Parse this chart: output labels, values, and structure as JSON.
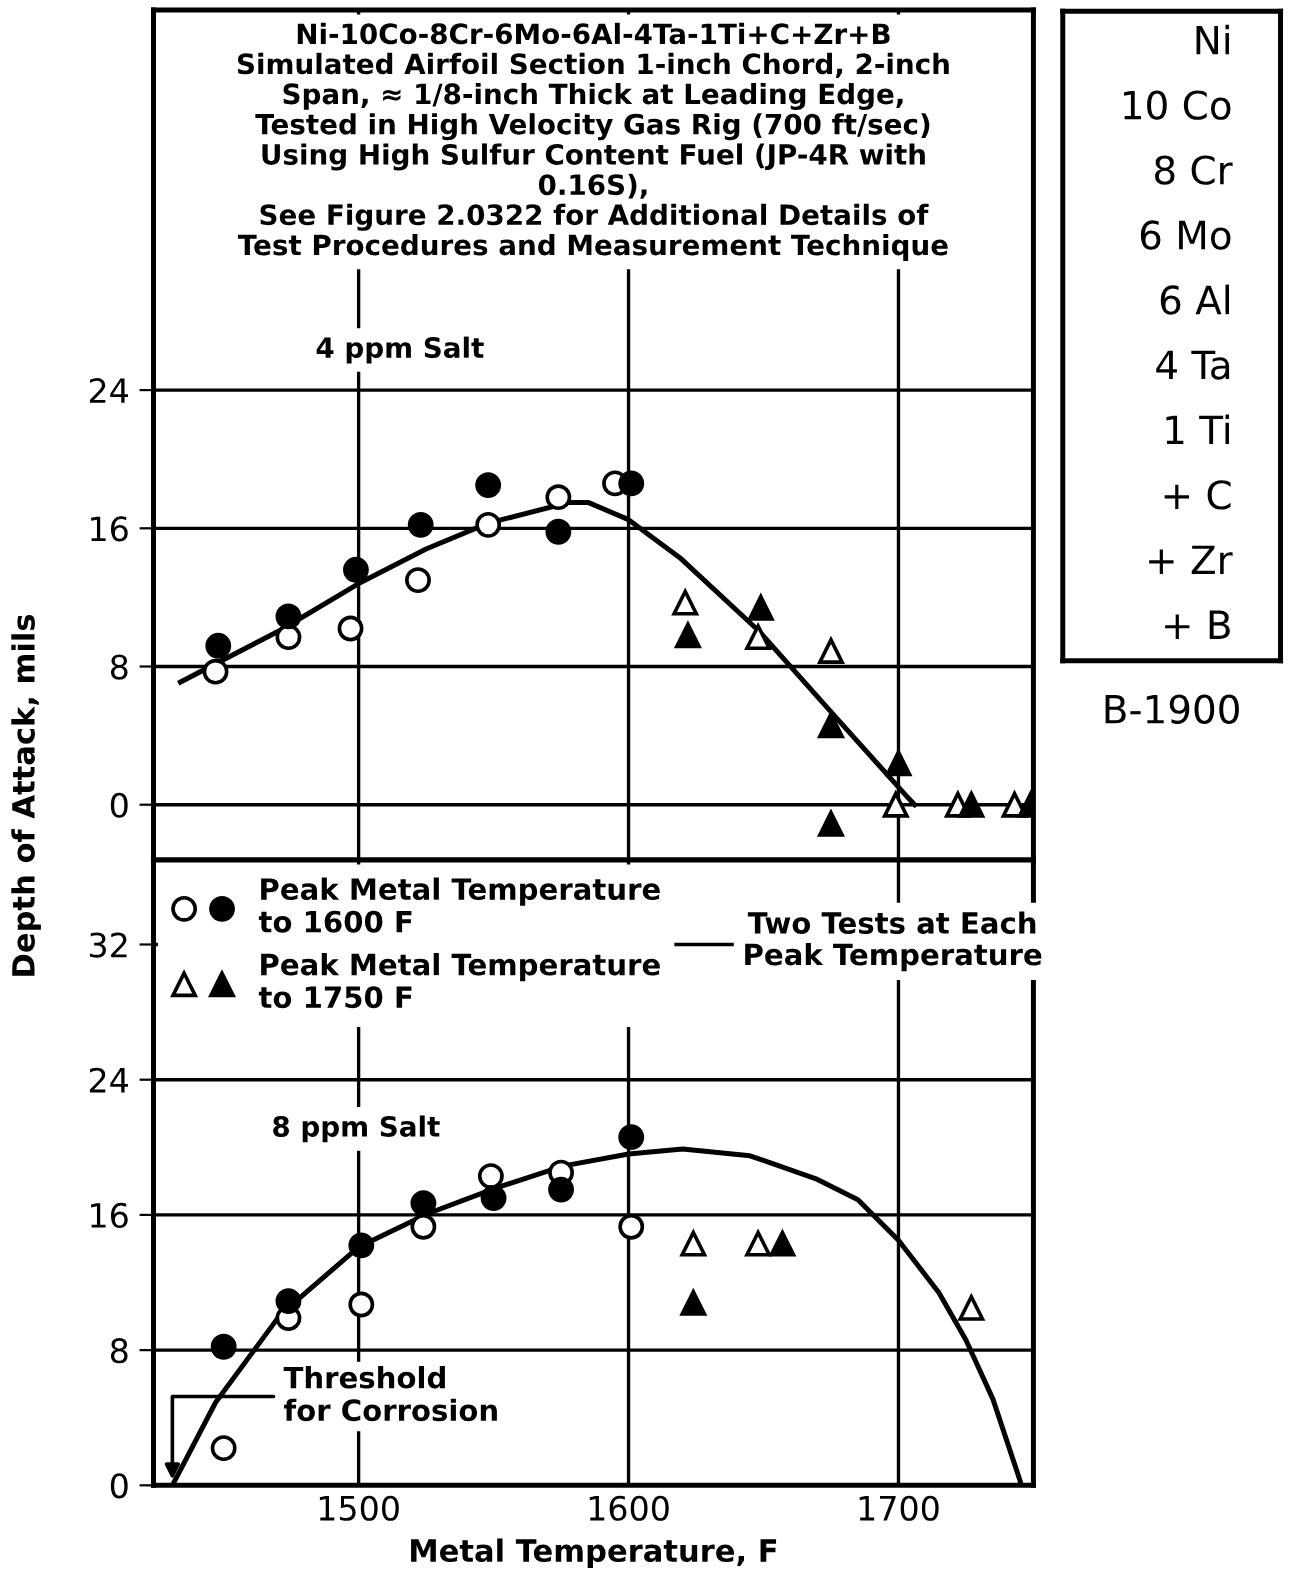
{
  "chart_data": [
    {
      "type": "scatter",
      "ylabel": "Depth of Attack, mils",
      "xlim": [
        1424,
        1750
      ],
      "ylim": [
        -3.2,
        46
      ],
      "xticks": [
        1500,
        1600,
        1700
      ],
      "yticks": [
        0,
        8,
        16,
        24
      ],
      "tick_labels": "y",
      "grid": true,
      "legend": false,
      "annotations": [
        "Ni-10Co-8Cr-6Mo-6Al-4Ta-1Ti+C+Zr+B\nSimulated Airfoil Section 1-inch Chord, 2-inch\nSpan, ≈ 1/8-inch Thick at Leading Edge,\nTested in High Velocity Gas Rig (700 ft/sec)\nUsing High Sulfur Content Fuel (JP-4R with\n0.16S),\nSee Figure 2.0322 for Additional Details of\nTest Procedures and Measurement Technique",
        "4 ppm Salt"
      ],
      "series": [
        {
          "color": "#ffffff",
          "marker": "circle",
          "x": [
            1447,
            1474,
            1497,
            1522,
            1548,
            1574,
            1595
          ],
          "values": [
            7.7,
            9.7,
            10.2,
            13.0,
            16.2,
            17.8,
            18.6
          ]
        },
        {
          "color": "#000000",
          "marker": "circle",
          "x": [
            1448,
            1474,
            1499,
            1523,
            1548,
            1574,
            1601
          ],
          "values": [
            9.2,
            10.9,
            13.6,
            16.2,
            18.5,
            15.8,
            18.6
          ]
        },
        {
          "color": "#ffffff",
          "marker": "triangle",
          "x": [
            1621,
            1648,
            1675,
            1699,
            1722,
            1743
          ],
          "values": [
            11.7,
            9.7,
            8.9,
            0,
            0,
            0
          ]
        },
        {
          "color": "#000000",
          "marker": "triangle",
          "x": [
            1622,
            1649,
            1675,
            1675,
            1700,
            1727,
            1749
          ],
          "values": [
            9.8,
            11.4,
            4.6,
            -1.1,
            2.4,
            0,
            0
          ]
        },
        {
          "type": "line",
          "color": "#000000",
          "marker": "none",
          "x": [
            1434,
            1471,
            1500,
            1525,
            1548,
            1578,
            1585,
            1600,
            1619,
            1648,
            1676,
            1703,
            1706
          ],
          "values": [
            7.1,
            10.1,
            12.8,
            14.8,
            16.3,
            17.5,
            17.5,
            16.5,
            14.3,
            10.1,
            5.2,
            0.5,
            0
          ]
        }
      ]
    },
    {
      "type": "scatter",
      "xlabel": "Metal Temperature, F",
      "xlim": [
        1424,
        1750
      ],
      "ylim": [
        0,
        37
      ],
      "xticks": [
        1500,
        1600,
        1700
      ],
      "yticks": [
        0,
        8,
        16,
        24,
        32
      ],
      "grid": true,
      "legend": "top left",
      "annotations": [
        "8 ppm Salt",
        {
          "text": "Threshold\nfor Corrosion",
          "x": 1431,
          "y": 0
        },
        "Two Tests at Each\nPeak Temperature"
      ],
      "series": [
        {
          "color": "#ffffff",
          "marker": "circle",
          "x": [
            1450,
            1474,
            1501,
            1524,
            1549,
            1575,
            1601
          ],
          "values": [
            2.2,
            9.9,
            10.7,
            15.3,
            18.3,
            18.5,
            15.3
          ]
        },
        {
          "name": "Peak Metal Temperature\nto 1600 F",
          "color": "#000000",
          "marker": "circle",
          "x": [
            1450,
            1474,
            1501,
            1524,
            1550,
            1575,
            1601
          ],
          "values": [
            8.2,
            10.9,
            14.2,
            16.7,
            17.0,
            17.5,
            20.6
          ]
        },
        {
          "color": "#ffffff",
          "marker": "triangle",
          "x": [
            1624,
            1648,
            1727
          ],
          "values": [
            14.3,
            14.3,
            10.5
          ]
        },
        {
          "name": "Peak Metal Temperature\nto 1750 F",
          "color": "#000000",
          "marker": "triangle",
          "x": [
            1624,
            1657
          ],
          "values": [
            10.8,
            14.3
          ]
        },
        {
          "type": "line",
          "color": "#000000",
          "marker": "none",
          "x": [
            1431,
            1447,
            1471,
            1500,
            1526,
            1551,
            1576,
            1600,
            1620,
            1645,
            1670,
            1685,
            1700,
            1715,
            1725,
            1735,
            1745,
            1745.5
          ],
          "values": [
            0,
            4.9,
            10.1,
            14.1,
            16.1,
            17.6,
            18.9,
            19.6,
            19.9,
            19.5,
            18.1,
            16.9,
            14.5,
            11.4,
            8.6,
            5.1,
            0.3,
            0
          ]
        }
      ]
    },
    {
      "type": "other",
      "title": "B-1900",
      "annotations": [
        "Ni",
        "10 Co",
        "8 Cr",
        "6 Mo",
        "6 Al",
        "4 Ta",
        "1 Ti",
        "+ C",
        "+ Zr",
        "+ B"
      ]
    }
  ]
}
